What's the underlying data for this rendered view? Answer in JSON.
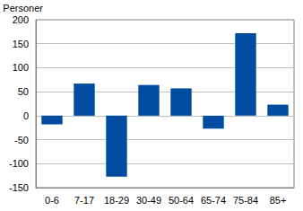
{
  "chart_data": {
    "type": "bar",
    "ylabel": "Personer",
    "categories": [
      "0-6",
      "7-17",
      "18-29",
      "30-49",
      "50-64",
      "65-74",
      "75-84",
      "85+"
    ],
    "values": [
      -18,
      67,
      -127,
      64,
      57,
      -27,
      172,
      23
    ],
    "color": "#004c9f",
    "ylim": [
      -150,
      200
    ],
    "yticks": [
      -150,
      -100,
      -50,
      0,
      50,
      100,
      150,
      200
    ],
    "grid": true
  }
}
